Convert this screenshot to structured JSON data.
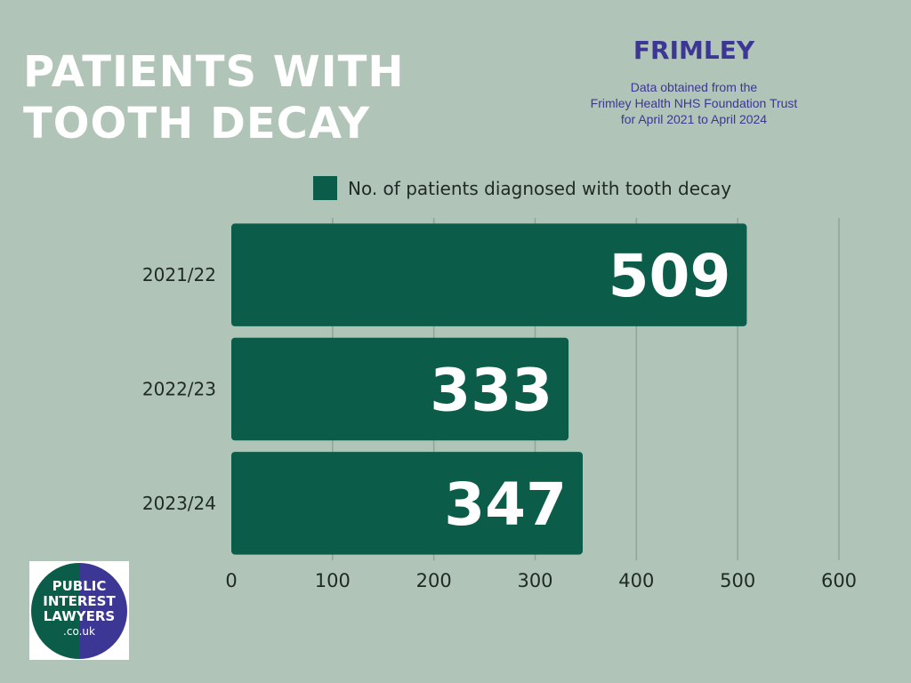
{
  "title": {
    "line1": "PATIENTS WITH",
    "line2": "TOOTH DECAY"
  },
  "region": "FRIMLEY",
  "source": {
    "line1": "Data obtained from the",
    "line2": "Frimley Health NHS Foundation Trust",
    "line3": "for April 2021 to April 2024"
  },
  "logo": {
    "line1": "PUBLIC",
    "line2": "INTEREST",
    "line3": "LAWYERS",
    "line4": ".co.uk"
  },
  "colors": {
    "background": "#b0c4b8",
    "bar": "#0b5d49",
    "accent": "#3c3794",
    "grid": "#8fa596"
  },
  "chart_data": {
    "type": "bar",
    "orientation": "horizontal",
    "categories": [
      "2021/22",
      "2022/23",
      "2023/24"
    ],
    "series": [
      {
        "name": "No. of patients diagnosed with tooth decay",
        "values": [
          509,
          333,
          347
        ]
      }
    ],
    "xlim": [
      0,
      600
    ],
    "xticks": [
      0,
      100,
      200,
      300,
      400,
      500,
      600
    ],
    "grid": "vertical",
    "legend": "top",
    "data_labels": true
  }
}
